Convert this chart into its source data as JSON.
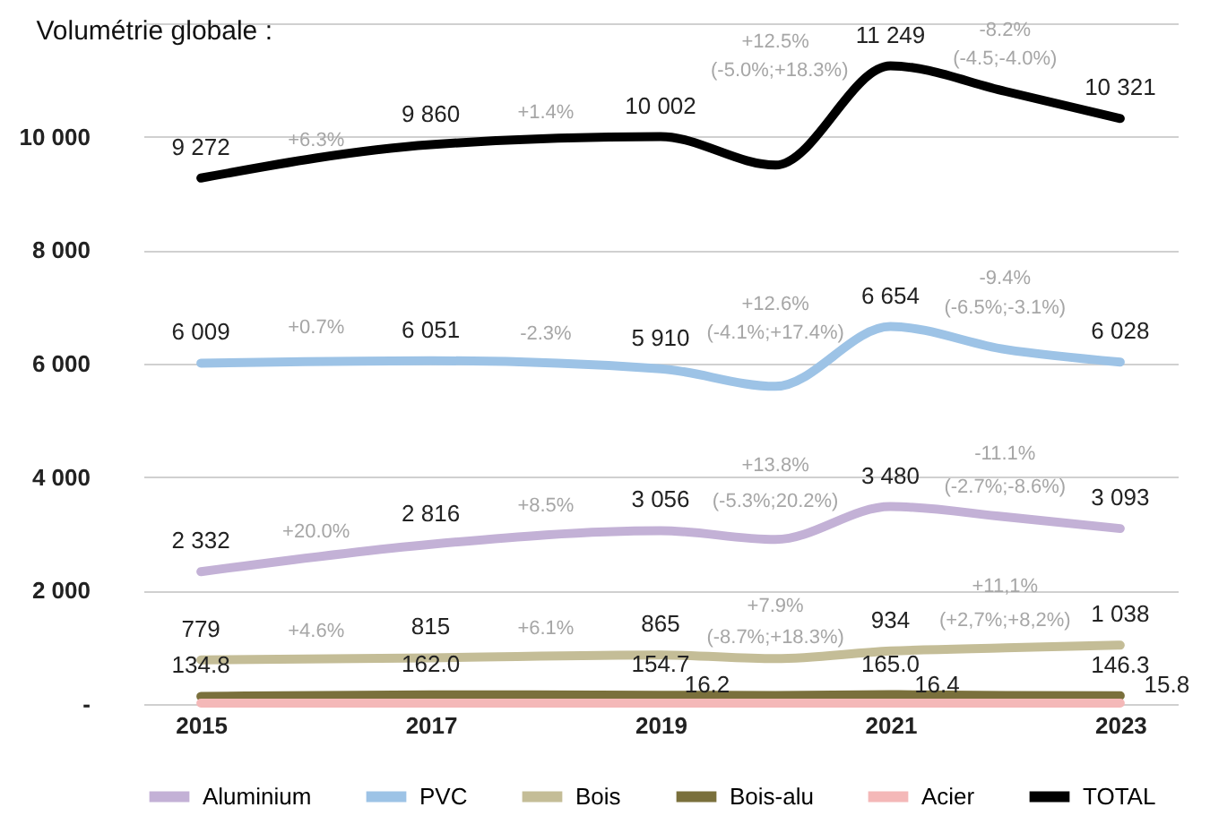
{
  "chart_data": {
    "type": "line",
    "title": "Volumétrie globale :",
    "x": [
      2015,
      2017,
      2019,
      2020,
      2021,
      2022,
      2023
    ],
    "xlim": [
      2014.5,
      2023.5
    ],
    "xticks": [
      2015,
      2017,
      2019,
      2021,
      2023
    ],
    "ylim": [
      0,
      12000
    ],
    "yticks": [
      {
        "value": 0,
        "label": "-"
      },
      {
        "value": 2000,
        "label": "2 000"
      },
      {
        "value": 4000,
        "label": "4 000"
      },
      {
        "value": 6000,
        "label": "6 000"
      },
      {
        "value": 8000,
        "label": "8 000"
      },
      {
        "value": 10000,
        "label": "10 000"
      },
      {
        "value": 12000,
        "label": null
      }
    ],
    "grid": "y",
    "legend": "bottom",
    "line_style": "solid",
    "marker": "none",
    "series": [
      {
        "name": "Aluminium",
        "color": "#c3b1d6",
        "values": [
          2332,
          2816,
          3056,
          2900,
          3480,
          3300,
          3093
        ],
        "value_labels": [
          "2 332",
          "2 816",
          "3 056",
          null,
          "3 480",
          null,
          "3 093"
        ]
      },
      {
        "name": "PVC",
        "color": "#9dc3e6",
        "values": [
          6009,
          6051,
          5910,
          5600,
          6654,
          6250,
          6028
        ],
        "value_labels": [
          "6 009",
          "6 051",
          "5 910",
          null,
          "6 654",
          null,
          "6 028"
        ]
      },
      {
        "name": "Bois",
        "color": "#c4bd97",
        "values": [
          779,
          815,
          865,
          800,
          934,
          990,
          1038
        ],
        "value_labels": [
          "779",
          "815",
          "865",
          null,
          "934",
          null,
          "1 038"
        ]
      },
      {
        "name": "Bois-alu",
        "color": "#7a703c",
        "values": [
          134.8,
          162.0,
          154.7,
          150,
          165.0,
          150,
          146.3
        ],
        "value_labels": [
          "134.8",
          "162.0",
          "154.7",
          null,
          "165.0",
          null,
          "146.3"
        ]
      },
      {
        "name": "Acier",
        "color": "#f4b8b8",
        "values": [
          16,
          16,
          16.2,
          16,
          16.4,
          16,
          15.8
        ],
        "value_labels": [
          null,
          null,
          "16.2",
          null,
          "16.4",
          null,
          "15.8"
        ]
      },
      {
        "name": "TOTAL",
        "color": "#000000",
        "values": [
          9272,
          9860,
          10002,
          9500,
          11249,
          10800,
          10321
        ],
        "value_labels": [
          "9 272",
          "9 860",
          "10 002",
          null,
          "11 249",
          null,
          "10 321"
        ]
      }
    ],
    "annotations": [
      "+6.3%",
      "+1.4%",
      "+12.5%",
      "(-5.0%;+18.3%)",
      "-8.2%",
      "(-4.5;-4.0%)",
      "+0.7%",
      "-2.3%",
      "+12.6%",
      "(-4.1%;+17.4%)",
      "-9.4%",
      "(-6.5%;-3.1%)",
      "+20.0%",
      "+8.5%",
      "+13.8%",
      "(-5.3%;20.2%)",
      "-11.1%",
      "(-2.7%;-8.6%)",
      "+4.6%",
      "+6.1%",
      "+7.9%",
      "(-8.7%;+18.3%)",
      "+11,1%",
      "(+2,7%;+8,2%)"
    ]
  }
}
